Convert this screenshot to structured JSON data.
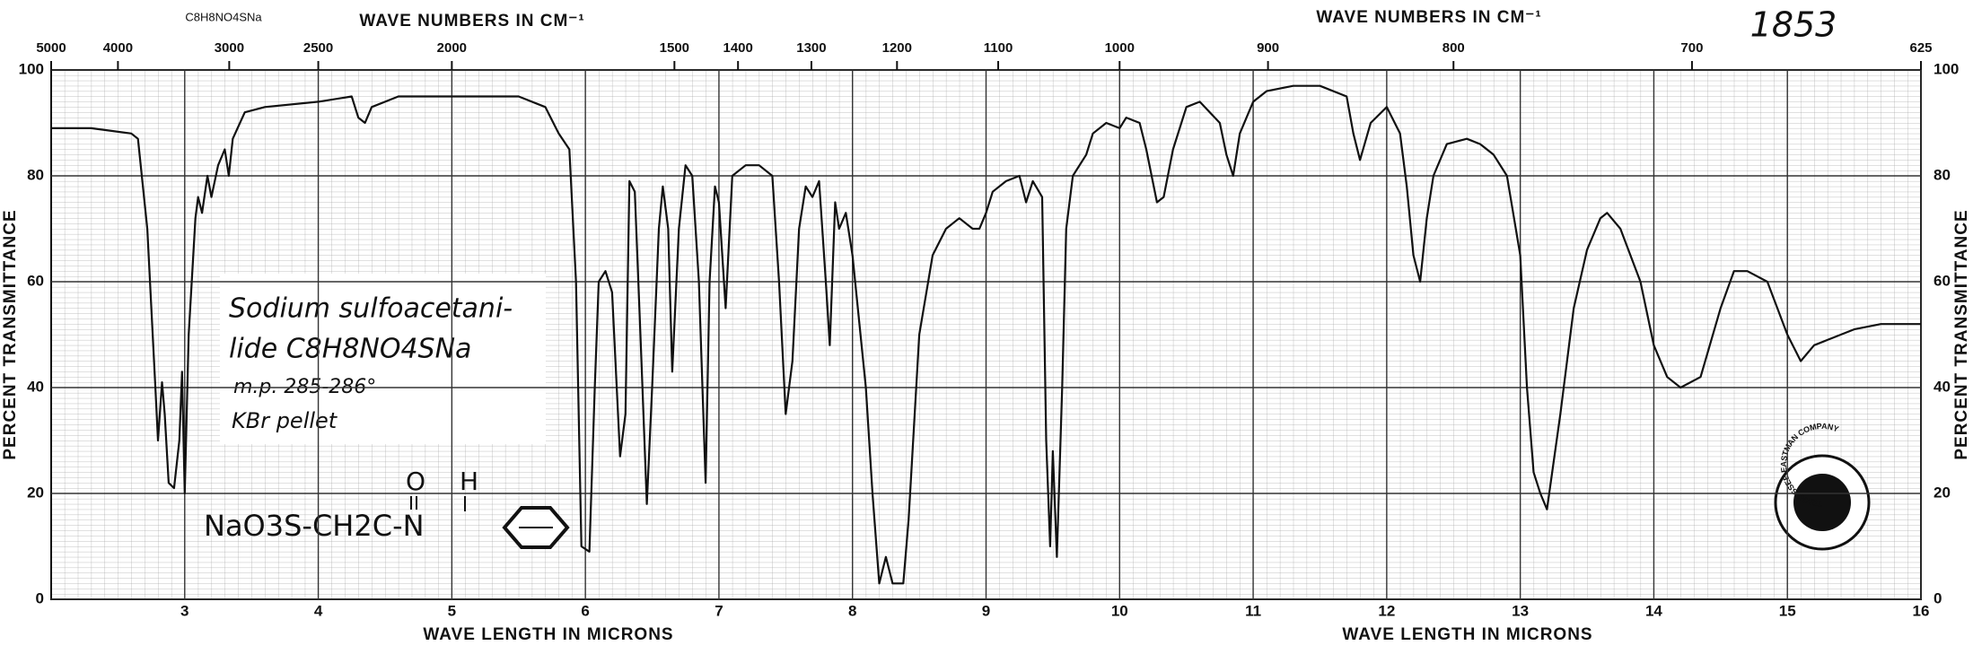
{
  "chart_data": {
    "type": "line",
    "x": [
      2.0,
      2.3,
      2.6,
      2.65,
      2.72,
      2.78,
      2.8,
      2.83,
      2.85,
      2.88,
      2.92,
      2.96,
      2.98,
      3.0,
      3.03,
      3.08,
      3.1,
      3.13,
      3.17,
      3.2,
      3.25,
      3.3,
      3.33,
      3.36,
      3.45,
      3.6,
      4.0,
      4.25,
      4.3,
      4.35,
      4.4,
      4.6,
      5.0,
      5.5,
      5.7,
      5.8,
      5.88,
      5.93,
      5.97,
      6.03,
      6.07,
      6.1,
      6.15,
      6.2,
      6.26,
      6.3,
      6.33,
      6.37,
      6.42,
      6.46,
      6.5,
      6.55,
      6.58,
      6.62,
      6.65,
      6.7,
      6.75,
      6.8,
      6.85,
      6.9,
      6.93,
      6.97,
      7.0,
      7.05,
      7.1,
      7.2,
      7.3,
      7.4,
      7.45,
      7.5,
      7.55,
      7.6,
      7.65,
      7.7,
      7.75,
      7.8,
      7.83,
      7.87,
      7.9,
      7.95,
      8.0,
      8.1,
      8.15,
      8.2,
      8.25,
      8.3,
      8.38,
      8.42,
      8.5,
      8.6,
      8.7,
      8.8,
      8.9,
      8.95,
      9.0,
      9.05,
      9.15,
      9.25,
      9.3,
      9.35,
      9.42,
      9.45,
      9.48,
      9.5,
      9.53,
      9.57,
      9.6,
      9.65,
      9.75,
      9.8,
      9.9,
      10.0,
      10.05,
      10.15,
      10.2,
      10.28,
      10.33,
      10.4,
      10.5,
      10.6,
      10.75,
      10.8,
      10.85,
      10.9,
      11.0,
      11.1,
      11.3,
      11.5,
      11.7,
      11.75,
      11.8,
      11.88,
      12.0,
      12.1,
      12.15,
      12.2,
      12.25,
      12.3,
      12.35,
      12.45,
      12.6,
      12.7,
      12.8,
      12.9,
      13.0,
      13.05,
      13.1,
      13.15,
      13.2,
      13.3,
      13.4,
      13.5,
      13.6,
      13.65,
      13.75,
      13.9,
      14.0,
      14.1,
      14.2,
      14.35,
      14.5,
      14.6,
      14.7,
      14.85,
      15.0,
      15.1,
      15.2,
      15.3,
      15.5,
      15.7,
      16.0
    ],
    "values": [
      89,
      89,
      88,
      87,
      70,
      40,
      30,
      41,
      35,
      22,
      21,
      30,
      43,
      20,
      50,
      72,
      76,
      73,
      80,
      76,
      82,
      85,
      80,
      87,
      92,
      93,
      94,
      95,
      91,
      90,
      93,
      95,
      95,
      95,
      93,
      88,
      85,
      60,
      10,
      9,
      40,
      60,
      62,
      58,
      27,
      35,
      79,
      77,
      45,
      18,
      40,
      70,
      78,
      70,
      43,
      70,
      82,
      80,
      60,
      22,
      60,
      78,
      75,
      55,
      80,
      82,
      82,
      80,
      60,
      35,
      45,
      70,
      78,
      76,
      79,
      60,
      48,
      75,
      70,
      73,
      65,
      40,
      20,
      3,
      8,
      3,
      3,
      15,
      50,
      65,
      70,
      72,
      70,
      70,
      73,
      77,
      79,
      80,
      75,
      79,
      76,
      30,
      10,
      28,
      8,
      40,
      70,
      80,
      84,
      88,
      90,
      89,
      91,
      90,
      85,
      75,
      76,
      85,
      93,
      94,
      90,
      84,
      80,
      88,
      94,
      96,
      97,
      97,
      95,
      88,
      83,
      90,
      93,
      88,
      78,
      65,
      60,
      72,
      80,
      86,
      87,
      86,
      84,
      80,
      65,
      40,
      24,
      20,
      17,
      35,
      55,
      66,
      72,
      73,
      70,
      60,
      48,
      42,
      40,
      42,
      55,
      62,
      62,
      60,
      50,
      45,
      48,
      49,
      51,
      52,
      52
    ],
    "color": "#111111",
    "xlim": [
      2,
      16
    ],
    "ylim": [
      0,
      100
    ],
    "xticks": [
      3,
      4,
      5,
      6,
      7,
      8,
      9,
      10,
      11,
      12,
      13,
      14,
      15,
      16
    ],
    "yticks": [
      0,
      20,
      40,
      60,
      80,
      100
    ],
    "grid": true,
    "x_label": "WAVE LENGTH IN MICRONS",
    "y_label": "PERCENT TRANSMITTANCE",
    "top_axis": {
      "label": "WAVE NUMBERS IN CM⁻¹",
      "ticks": [
        5000,
        4000,
        3000,
        2500,
        2000,
        1500,
        1400,
        1300,
        1200,
        1100,
        1000,
        900,
        800,
        700,
        625
      ]
    },
    "annotations": {
      "formula_top": "C8H8NO4SNa",
      "catalog_number": "1853",
      "note_lines": [
        "Sodium sulfoacetani-",
        "lide  C8H8NO4SNa",
        "m.p. 285-286°",
        "KBr pellet"
      ],
      "structure": "NaO3S-CH2C-N",
      "structure_o": "O",
      "structure_h": "H",
      "logo_text": "TENNESSEE EASTMAN COMPANY"
    }
  }
}
